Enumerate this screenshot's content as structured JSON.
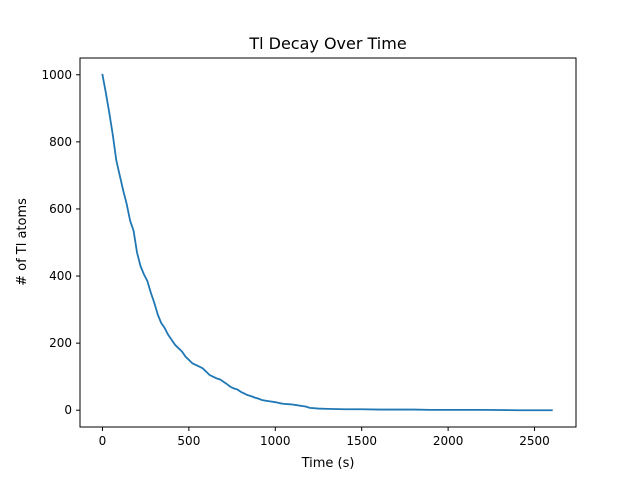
{
  "chart_data": {
    "type": "line",
    "title": "Tl Decay Over Time",
    "xlabel": "Time (s)",
    "ylabel": "# of Tl atoms",
    "xlim": [
      -130,
      2740
    ],
    "ylim": [
      -50,
      1050
    ],
    "xticks": [
      0,
      500,
      1000,
      1500,
      2000,
      2500
    ],
    "yticks": [
      0,
      200,
      400,
      600,
      800,
      1000
    ],
    "xtick_labels": [
      "0",
      "500",
      "1000",
      "1500",
      "2000",
      "2500"
    ],
    "ytick_labels": [
      "0",
      "200",
      "400",
      "600",
      "800",
      "1000"
    ],
    "grid": false,
    "line_color": "#1f77b4",
    "series": [
      {
        "x": [
          0,
          20,
          40,
          60,
          80,
          100,
          120,
          140,
          160,
          180,
          200,
          220,
          240,
          260,
          280,
          300,
          320,
          340,
          360,
          380,
          400,
          420,
          440,
          460,
          480,
          500,
          520,
          540,
          560,
          580,
          600,
          620,
          640,
          660,
          680,
          700,
          720,
          740,
          760,
          780,
          800,
          820,
          840,
          860,
          880,
          900,
          925,
          950,
          975,
          1000,
          1025,
          1050,
          1075,
          1100,
          1125,
          1150,
          1175,
          1200,
          1250,
          1300,
          1400,
          1500,
          1600,
          1700,
          1800,
          1900,
          2000,
          2200,
          2400,
          2600
        ],
        "values": [
          1000,
          945,
          885,
          820,
          745,
          700,
          655,
          615,
          565,
          535,
          470,
          430,
          405,
          385,
          350,
          320,
          285,
          260,
          245,
          225,
          210,
          195,
          185,
          175,
          160,
          150,
          140,
          135,
          130,
          125,
          115,
          105,
          100,
          95,
          92,
          85,
          78,
          70,
          65,
          62,
          55,
          50,
          45,
          42,
          38,
          35,
          30,
          28,
          26,
          24,
          21,
          19,
          18,
          17,
          15,
          13,
          11,
          7,
          5,
          4,
          3,
          3,
          2,
          2,
          2,
          1,
          1,
          1,
          0,
          0
        ]
      }
    ]
  }
}
